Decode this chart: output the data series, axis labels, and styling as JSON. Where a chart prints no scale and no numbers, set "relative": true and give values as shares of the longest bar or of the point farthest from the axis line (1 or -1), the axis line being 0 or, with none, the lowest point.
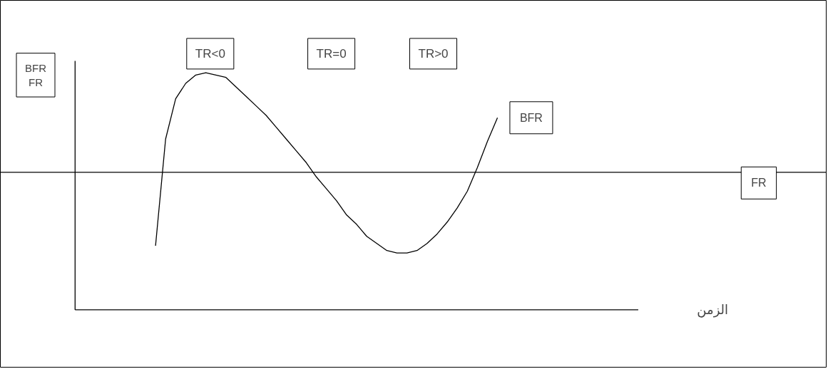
{
  "chart_data": {
    "type": "line",
    "relative": true,
    "xlabel": "الزمن",
    "ylabel": "BFR\nFR",
    "categories": [
      null,
      null,
      null,
      null,
      null,
      null,
      null,
      null,
      null,
      null,
      null,
      null,
      null,
      null,
      null,
      null,
      null,
      null,
      null,
      null,
      null,
      null,
      null,
      null,
      null,
      null,
      null,
      null,
      null,
      null,
      null,
      null,
      null,
      null,
      null,
      null,
      null,
      null,
      null,
      null,
      null,
      null,
      null,
      null,
      null,
      null,
      null,
      null,
      null,
      null,
      null,
      null,
      null,
      null,
      null,
      null,
      null
    ],
    "series": [
      {
        "name": "BFR",
        "color": "#000000",
        "values": [
          null,
          null,
          null,
          null,
          null,
          null,
          null,
          null,
          0.27,
          0.72,
          0.89,
          0.955,
          0.99,
          1.0,
          0.99,
          0.98,
          0.94,
          0.9,
          0.86,
          0.82,
          0.77,
          0.72,
          0.67,
          0.62,
          0.56,
          0.51,
          0.46,
          0.4,
          0.36,
          0.31,
          0.28,
          0.25,
          0.24,
          0.24,
          0.25,
          0.28,
          0.32,
          0.37,
          0.43,
          0.5,
          0.6,
          0.71,
          0.81,
          null,
          null,
          null,
          null,
          null,
          null,
          null,
          null,
          null,
          null,
          null,
          null,
          null,
          null
        ]
      }
    ],
    "ref_lines": [
      {
        "axis": "y",
        "value": 0.58,
        "label": "FR",
        "color": "#000000"
      }
    ],
    "annotations": [
      "TR<0",
      "TR=0",
      "TR>0"
    ],
    "grid": false,
    "tick_labels": false,
    "marker": "none",
    "line_style": "solid"
  }
}
